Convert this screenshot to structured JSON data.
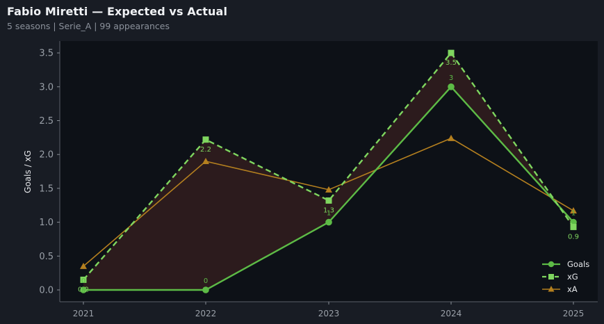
{
  "header": {
    "title": "Fabio Miretti — Expected vs Actual",
    "subtitle": "5 seasons | Serie_A | 99 appearances"
  },
  "colors": {
    "background": "#181c24",
    "plot_bg": "#0d1117",
    "goals": "#5dbb46",
    "xg": "#7fd65f",
    "xa": "#b5801f",
    "fill": "#2e1c1e"
  },
  "chart_data": {
    "type": "line",
    "title": "Fabio Miretti — Expected vs Actual",
    "subtitle": "5 seasons | Serie_A | 99 appearances",
    "xlabel": "",
    "ylabel": "Goals / xG",
    "categories": [
      "2021",
      "2022",
      "2023",
      "2024",
      "2025"
    ],
    "ylim": [
      -0.1,
      3.65
    ],
    "yticks": [
      "0.0",
      "0.5",
      "1.0",
      "1.5",
      "2.0",
      "2.5",
      "3.0",
      "3.5"
    ],
    "series": [
      {
        "name": "Goals",
        "marker": "circle",
        "style": "solid",
        "values": [
          0,
          0,
          1,
          3,
          1
        ],
        "labels": [
          "0",
          "0",
          "1",
          "3",
          "1"
        ]
      },
      {
        "name": "xG",
        "marker": "square",
        "style": "dashed",
        "values": [
          0.15,
          2.22,
          1.32,
          3.5,
          0.93
        ],
        "labels": [
          "0.2",
          "2.2",
          "1.3",
          "3.5",
          "0.9"
        ]
      },
      {
        "name": "xA",
        "marker": "triangle",
        "style": "solid",
        "values": [
          0.35,
          1.9,
          1.48,
          2.24,
          1.17
        ]
      }
    ],
    "fill_between": [
      "Goals",
      "xG"
    ],
    "grid": false,
    "legend_position": "lower right"
  },
  "legend": {
    "items": [
      "Goals",
      "xG",
      "xA"
    ]
  }
}
